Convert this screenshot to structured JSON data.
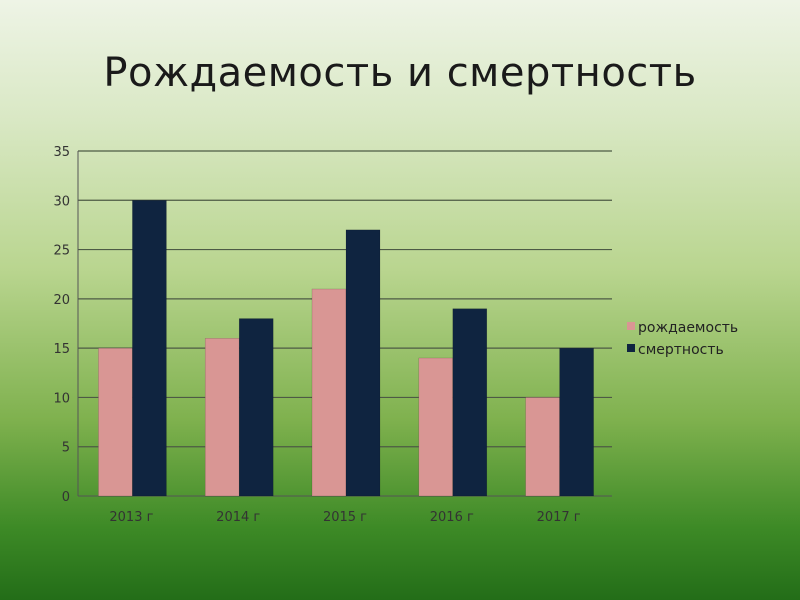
{
  "slide": {
    "title": "Рождаемость и смертность"
  },
  "chart_data": {
    "type": "bar",
    "categories": [
      "2013 г",
      "2014 г",
      "2015 г",
      "2016 г",
      "2017 г"
    ],
    "series": [
      {
        "name": "рождаемость",
        "values": [
          15,
          16,
          21,
          14,
          10
        ],
        "color": "#d99694"
      },
      {
        "name": "смертность",
        "values": [
          30,
          18,
          27,
          19,
          15
        ],
        "color": "#0f2440"
      }
    ],
    "ylim": [
      0,
      35
    ],
    "yticks": [
      0,
      5,
      10,
      15,
      20,
      25,
      30,
      35
    ],
    "grid": true,
    "legend": "right",
    "title": "",
    "xlabel": "",
    "ylabel": ""
  }
}
